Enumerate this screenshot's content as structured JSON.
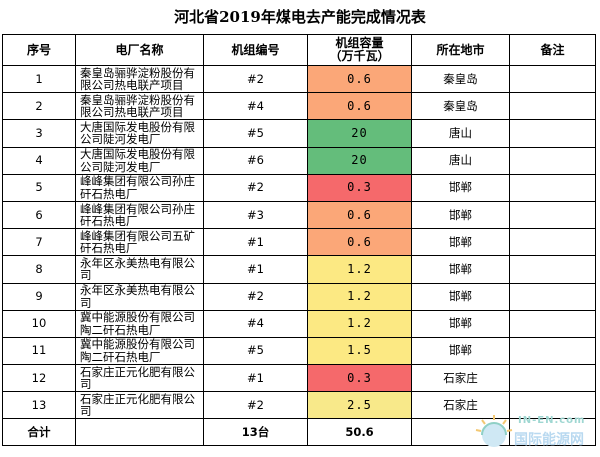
{
  "title": "河北省2019年煤电去产能完成情况表",
  "headers": {
    "seq": "序号",
    "plant": "电厂名称",
    "unit": "机组编号",
    "capacity_l1": "机组容量",
    "capacity_l2": "（万千瓦）",
    "city": "所在地市",
    "note": "备注"
  },
  "colors": {
    "red": "#f5696b",
    "orange": "#fba778",
    "green": "#64bd7b",
    "yellow": "#fce983",
    "light_yellow": "#f8e98a"
  },
  "rows": [
    {
      "seq": "1",
      "plant": "秦皇岛骊骅淀粉股份有限公司热电联产项目",
      "unit": "#2",
      "capacity": "0.6",
      "color": "orange",
      "city": "秦皇岛",
      "note": ""
    },
    {
      "seq": "2",
      "plant": "秦皇岛骊骅淀粉股份有限公司热电联产项目",
      "unit": "#4",
      "capacity": "0.6",
      "color": "orange",
      "city": "秦皇岛",
      "note": ""
    },
    {
      "seq": "3",
      "plant": "大唐国际发电股份有限公司陡河发电厂",
      "unit": "#5",
      "capacity": "20",
      "color": "green",
      "city": "唐山",
      "note": ""
    },
    {
      "seq": "4",
      "plant": "大唐国际发电股份有限公司陡河发电厂",
      "unit": "#6",
      "capacity": "20",
      "color": "green",
      "city": "唐山",
      "note": ""
    },
    {
      "seq": "5",
      "plant": "峰峰集团有限公司孙庄矸石热电厂",
      "unit": "#2",
      "capacity": "0.3",
      "color": "red",
      "city": "邯郸",
      "note": ""
    },
    {
      "seq": "6",
      "plant": "峰峰集团有限公司孙庄矸石热电厂",
      "unit": "#3",
      "capacity": "0.6",
      "color": "orange",
      "city": "邯郸",
      "note": ""
    },
    {
      "seq": "7",
      "plant": "峰峰集团有限公司五矿矸石热电厂",
      "unit": "#1",
      "capacity": "0.6",
      "color": "orange",
      "city": "邯郸",
      "note": ""
    },
    {
      "seq": "8",
      "plant": "永年区永美热电有限公司",
      "unit": "#1",
      "capacity": "1.2",
      "color": "yellow",
      "city": "邯郸",
      "note": ""
    },
    {
      "seq": "9",
      "plant": "永年区永美热电有限公司",
      "unit": "#2",
      "capacity": "1.2",
      "color": "yellow",
      "city": "邯郸",
      "note": ""
    },
    {
      "seq": "10",
      "plant": "冀中能源股份有限公司陶二矸石热电厂",
      "unit": "#4",
      "capacity": "1.2",
      "color": "yellow",
      "city": "邯郸",
      "note": ""
    },
    {
      "seq": "11",
      "plant": "冀中能源股份有限公司陶二矸石热电厂",
      "unit": "#5",
      "capacity": "1.5",
      "color": "yellow",
      "city": "邯郸",
      "note": ""
    },
    {
      "seq": "12",
      "plant": "石家庄正元化肥有限公司",
      "unit": "#1",
      "capacity": "0.3",
      "color": "red",
      "city": "石家庄",
      "note": ""
    },
    {
      "seq": "13",
      "plant": "石家庄正元化肥有限公司",
      "unit": "#2",
      "capacity": "2.5",
      "color": "light_yellow",
      "city": "石家庄",
      "note": ""
    }
  ],
  "total": {
    "label": "合计",
    "units": "13台",
    "capacity": "50.6"
  },
  "watermark": {
    "line1": "IN-EN.com",
    "line2": "国际能源网"
  }
}
